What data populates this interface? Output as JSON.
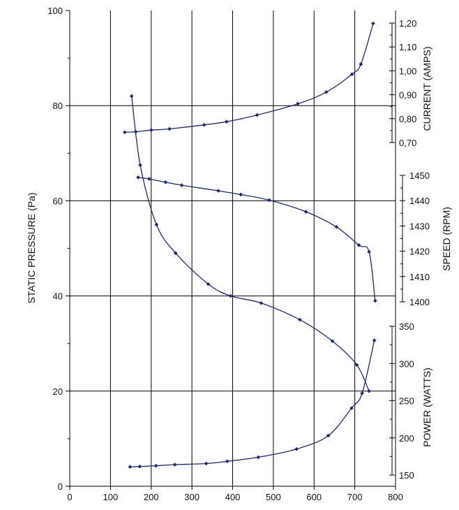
{
  "chart_data": {
    "type": "line",
    "grid": true,
    "colors": {
      "series": "#1f2a6b",
      "axis": "#000000",
      "grid": "#000000",
      "background": "#ffffff"
    },
    "x_axis": {
      "ticks": [
        0,
        100,
        200,
        300,
        400,
        500,
        600,
        700,
        800
      ],
      "range": [
        0,
        800
      ]
    },
    "left_axis": {
      "label": "STATIC PRESSURE (Pa)",
      "range": [
        0,
        100
      ],
      "ticks": [
        0,
        20,
        40,
        60,
        80,
        100
      ]
    },
    "right_axes": [
      {
        "id": "current",
        "label": "CURRENT (AMPS)",
        "range": [
          0.7,
          1.2
        ],
        "ticks": [
          "0,70",
          "0,80",
          "0,90",
          "1,00",
          "1,10",
          "1,20"
        ],
        "tick_values": [
          0.7,
          0.8,
          0.9,
          1.0,
          1.1,
          1.2
        ]
      },
      {
        "id": "speed",
        "label": "SPEED (RPM)",
        "range": [
          1400,
          1450
        ],
        "ticks": [
          "1450",
          "1440",
          "1430",
          "1420",
          "1410",
          "1400"
        ],
        "tick_values": [
          1450,
          1440,
          1430,
          1420,
          1410,
          1400
        ]
      },
      {
        "id": "power",
        "label": "POWER (WATTS)",
        "range": [
          150,
          350
        ],
        "ticks": [
          "350",
          "300",
          "250",
          "200",
          "150"
        ],
        "tick_values": [
          350,
          300,
          250,
          200,
          150
        ]
      }
    ],
    "series": [
      {
        "axis": "left",
        "x": [
          152,
          173,
          213,
          260,
          340,
          395,
          470,
          565,
          645,
          705,
          735
        ],
        "y": [
          82,
          67.5,
          55,
          49,
          42.5,
          40,
          38.5,
          35,
          30.5,
          25.5,
          20
        ]
      },
      {
        "axis": "current",
        "x": [
          135,
          162,
          200,
          245,
          330,
          385,
          460,
          560,
          630,
          693,
          715,
          745
        ],
        "y": [
          0.743,
          0.745,
          0.752,
          0.757,
          0.774,
          0.787,
          0.815,
          0.862,
          0.911,
          0.986,
          1.028,
          1.198
        ]
      },
      {
        "axis": "speed",
        "x": [
          168,
          195,
          235,
          275,
          365,
          420,
          490,
          580,
          655,
          710,
          735,
          750
        ],
        "y": [
          1449.2,
          1448.6,
          1447.3,
          1446.1,
          1443.9,
          1442.4,
          1440.2,
          1435.6,
          1429.6,
          1422.4,
          1419.8,
          1400.4
        ]
      },
      {
        "axis": "power",
        "x": [
          148,
          172,
          212,
          258,
          335,
          387,
          463,
          557,
          635,
          692,
          718,
          748
        ],
        "y": [
          161,
          161.5,
          162.5,
          164,
          165.5,
          168.5,
          174,
          185,
          203,
          240,
          260,
          331
        ]
      }
    ]
  }
}
